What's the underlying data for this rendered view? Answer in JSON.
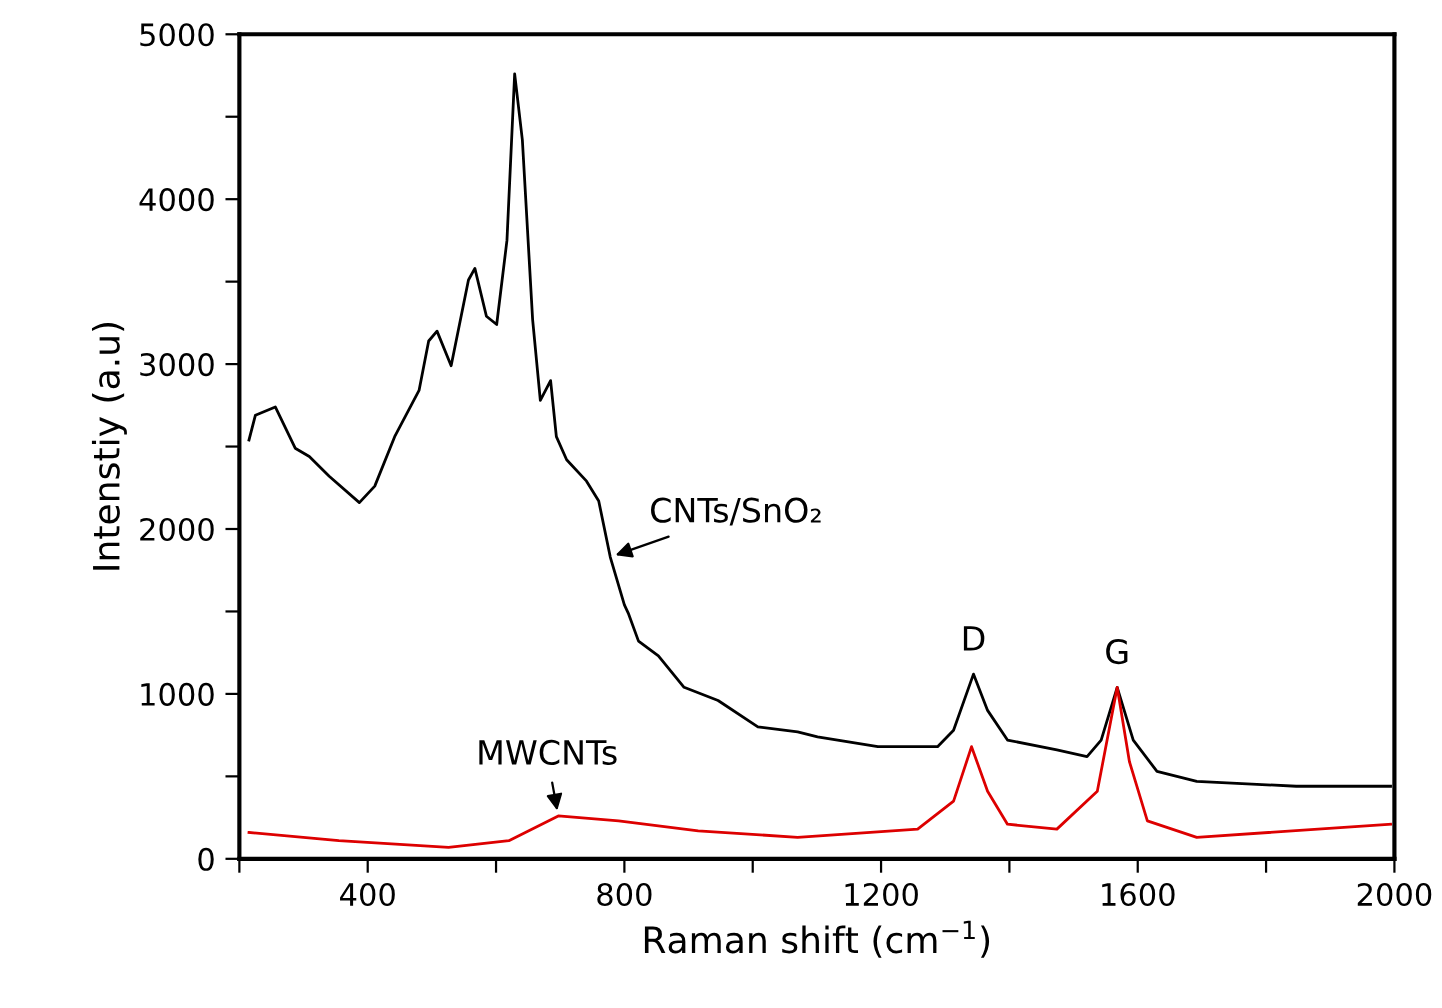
{
  "chart_data": {
    "type": "line",
    "xlabel": "Raman shift (cm$^{−1}$)",
    "ylabel": "Intenstiy (a.u)",
    "xlim": [
      200,
      2000
    ],
    "ylim": [
      0,
      5000
    ],
    "xticks": [
      {
        "value": 200,
        "label": null
      },
      400,
      {
        "value": 600,
        "label": null
      },
      800,
      {
        "value": 1000,
        "label": null
      },
      1200,
      {
        "value": 1400,
        "label": null
      },
      1600,
      {
        "value": 1800,
        "label": null
      },
      2000
    ],
    "yticks": [
      0,
      {
        "value": 500,
        "label": null
      },
      1000,
      {
        "value": 1500,
        "label": null
      },
      2000,
      {
        "value": 2500,
        "label": null
      },
      3000,
      {
        "value": 3500,
        "label": null
      },
      4000,
      {
        "value": 4500,
        "label": null
      },
      5000
    ],
    "grid": false,
    "legend": false,
    "marker": "none",
    "line_style": "solid",
    "series": [
      {
        "name": "CNTs/SnO₂",
        "color": "#000000",
        "x": [
          215,
          225,
          256,
          287,
          309,
          340,
          387,
          411,
          442,
          480,
          495,
          508,
          530,
          557,
          567,
          585,
          601,
          617,
          629,
          641,
          657,
          669,
          685,
          694,
          710,
          741,
          760,
          778,
          800,
          806,
          822,
          853,
          893,
          946,
          1008,
          1070,
          1101,
          1195,
          1288,
          1313,
          1344,
          1366,
          1397,
          1474,
          1521,
          1543,
          1568,
          1593,
          1630,
          1692,
          1847,
          1994
        ],
        "values": [
          2540,
          2690,
          2740,
          2490,
          2440,
          2320,
          2160,
          2260,
          2560,
          2840,
          3140,
          3200,
          2990,
          3510,
          3580,
          3290,
          3240,
          3750,
          4760,
          4360,
          3270,
          2780,
          2900,
          2560,
          2420,
          2290,
          2170,
          1830,
          1540,
          1490,
          1320,
          1230,
          1040,
          960,
          800,
          770,
          740,
          680,
          680,
          780,
          1120,
          900,
          720,
          660,
          620,
          720,
          1040,
          720,
          530,
          470,
          440,
          440
        ]
      },
      {
        "name": "MWCNTs",
        "color": "#dd0000",
        "x": [
          215,
          355,
          526,
          620,
          697,
          791,
          915,
          1070,
          1257,
          1313,
          1341,
          1366,
          1397,
          1474,
          1537,
          1568,
          1587,
          1615,
          1692,
          1994
        ],
        "values": [
          160,
          110,
          70,
          110,
          260,
          230,
          170,
          130,
          180,
          350,
          680,
          410,
          210,
          180,
          410,
          1040,
          590,
          230,
          130,
          210
        ]
      }
    ],
    "annotations": [
      {
        "text": "D",
        "x": 1344,
        "y": 1120
      },
      {
        "text": "G",
        "x": 1568,
        "y": 1040
      }
    ]
  }
}
